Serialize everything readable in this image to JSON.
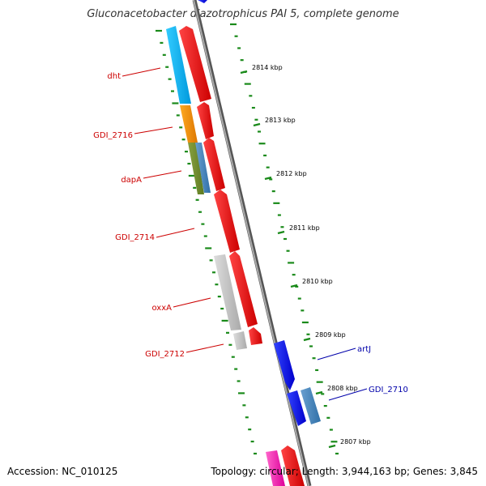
{
  "title": "Gluconacetobacter diazotrophicus PAI 5, complete genome",
  "footer": {
    "accession": "Accession: NC_010125",
    "summary": "Topology: circular; Length: 3,944,163 bp; Genes: 3,845"
  },
  "colors": {
    "backbone": "#888888",
    "ticks": "#1a8a1a",
    "red_label": "#cc0000",
    "blue_label": "#0000aa"
  },
  "kbp_ticks": [
    {
      "label": "2814 kbp"
    },
    {
      "label": "2813 kbp"
    },
    {
      "label": "2812 kbp"
    },
    {
      "label": "2811 kbp"
    },
    {
      "label": "2810 kbp"
    },
    {
      "label": "2809 kbp"
    },
    {
      "label": "2808 kbp"
    },
    {
      "label": "2807 kbp"
    }
  ],
  "gene_labels": [
    {
      "text": "dht",
      "color": "red"
    },
    {
      "text": "GDI_2716",
      "color": "red"
    },
    {
      "text": "dapA",
      "color": "red"
    },
    {
      "text": "GDI_2714",
      "color": "red"
    },
    {
      "text": "oxxA",
      "color": "red"
    },
    {
      "text": "GDI_2712",
      "color": "red"
    },
    {
      "text": "artJ",
      "color": "blue"
    },
    {
      "text": "GDI_2710",
      "color": "blue"
    }
  ]
}
